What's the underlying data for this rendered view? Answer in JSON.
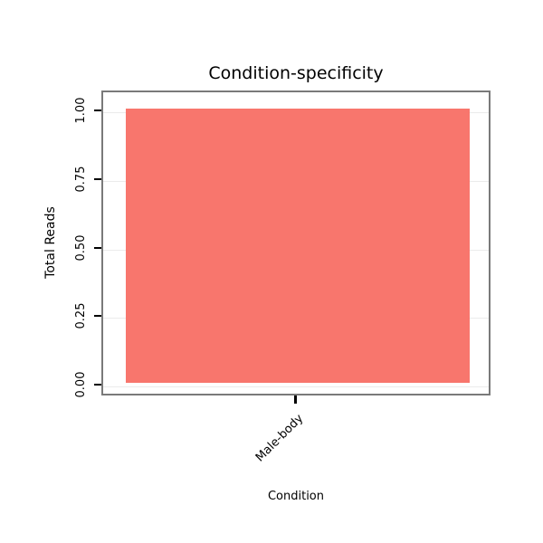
{
  "chart_data": {
    "type": "bar",
    "title": "Condition-specificity",
    "xlabel": "Condition",
    "ylabel": "Total Reads",
    "categories": [
      "Male-body"
    ],
    "values": [
      1.0
    ],
    "ylim": [
      0,
      1.0
    ],
    "yticks": [
      0.0,
      0.25,
      0.5,
      0.75,
      1.0
    ],
    "ytick_labels": [
      "0.00",
      "0.25",
      "0.50",
      "0.75",
      "1.00"
    ],
    "bar_color": "#f8766d",
    "panel_border_color": "#7a7a7a",
    "gridline_color": "#ebebeb",
    "grid": "on",
    "legend_position": "none"
  }
}
